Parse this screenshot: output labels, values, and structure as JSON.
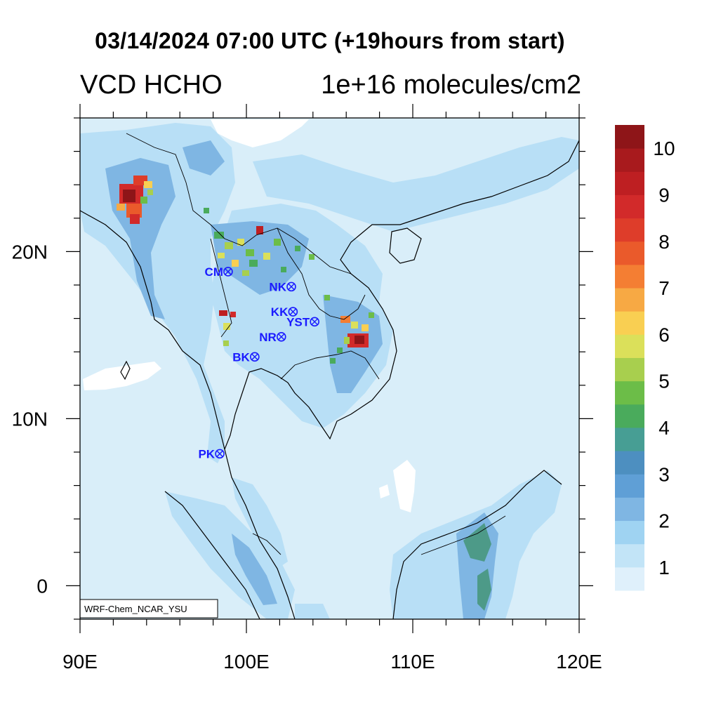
{
  "title": "03/14/2024 07:00 UTC (+19hours from start)",
  "subtitle_left": "VCD HCHO",
  "subtitle_right": "1e+16 molecules/cm2",
  "credit": "WRF-Chem_NCAR_YSU",
  "map": {
    "lon_range": [
      90,
      120
    ],
    "lat_range": [
      -2,
      28
    ],
    "x_ticks": [
      {
        "value": 90,
        "label": "90E"
      },
      {
        "value": 100,
        "label": "100E"
      },
      {
        "value": 110,
        "label": "110E"
      },
      {
        "value": 120,
        "label": "120E"
      }
    ],
    "y_ticks": [
      {
        "value": 0,
        "label": "0"
      },
      {
        "value": 10,
        "label": "10N"
      },
      {
        "value": 20,
        "label": "20N"
      }
    ],
    "background_color": "#d9eef9",
    "stations": [
      {
        "name": "CM",
        "lon": 98.9,
        "lat": 18.8
      },
      {
        "name": "NK",
        "lon": 102.7,
        "lat": 17.9
      },
      {
        "name": "KK",
        "lon": 102.8,
        "lat": 16.4
      },
      {
        "name": "YST",
        "lon": 104.1,
        "lat": 15.8
      },
      {
        "name": "NR",
        "lon": 102.1,
        "lat": 14.9
      },
      {
        "name": "BK",
        "lon": 100.5,
        "lat": 13.7
      },
      {
        "name": "PK",
        "lon": 98.4,
        "lat": 7.9
      }
    ]
  },
  "colorbar": {
    "labels": [
      "1",
      "2",
      "3",
      "4",
      "5",
      "6",
      "7",
      "8",
      "9",
      "10"
    ],
    "colors": [
      "#dff0fb",
      "#c2e4f7",
      "#9fd3f2",
      "#7fb6e3",
      "#5f9fd6",
      "#4d8fc0",
      "#479e94",
      "#4aab5c",
      "#6cbd48",
      "#a8cf4e",
      "#dbe05a",
      "#f9cf52",
      "#f7a944",
      "#f47e33",
      "#ea5a2b",
      "#de3d2a",
      "#d22a2a",
      "#be1f22",
      "#a81a1d",
      "#8e1518"
    ]
  }
}
